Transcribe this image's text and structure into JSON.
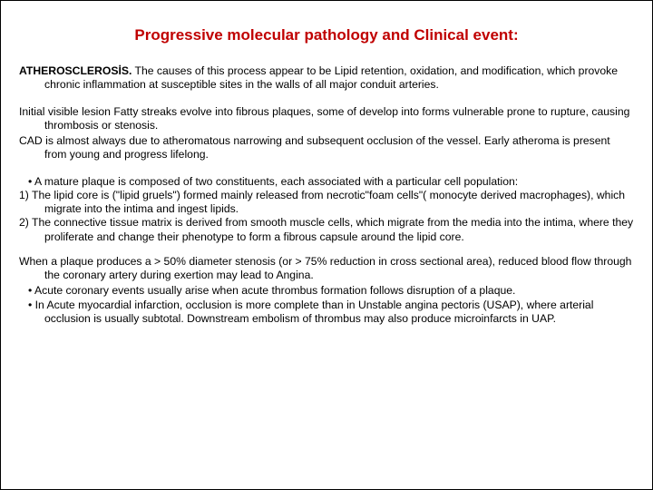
{
  "colors": {
    "title_color": "#c00000",
    "body_color": "#000000",
    "background": "#ffffff",
    "border": "#000000"
  },
  "title": "Progressive molecular pathology and Clinical event:",
  "p1_lead": "ATHEROSCLEROSİS.",
  "p1_rest": " The causes of this process appear to be Lipid retention, oxidation, and modification, which provoke chronic inflammation at susceptible sites in the walls of all major conduit arteries.",
  "p2a": "Initial visible lesion Fatty streaks evolve into fibrous plaques, some of  develop into forms vulnerable  prone to rupture, causing thrombosis or stenosis.",
  "p2b": "CAD is almost always due to atheromatous narrowing and subsequent occlusion of the vessel. Early atheroma  is present from young and progress lifelong.",
  "p3_bullet": "•    A mature plaque is composed of two constituents, each associated with a particular cell population:",
  "p3_n1": "1) The lipid core is (\"lipid gruels\") formed mainly released from necrotic\"foam cells\"( monocyte derived macrophages), which migrate into the intima and ingest lipids.",
  "p3_n2": "2) The connective tissue matrix is derived from smooth muscle cells, which migrate from the media into the intima, where they proliferate and change their phenotype to form a fibrous capsule around the lipid core.",
  "p4a": "When a plaque produces a > 50% diameter stenosis (or > 75% reduction in cross sectional area), reduced blood flow through the coronary artery during exertion may lead to Angina.",
  "p4b": "•    Acute coronary events usually arise when acute thrombus formation follows disruption of a plaque.",
  "p4c": "•    In Acute myocardial infarction, occlusion is more complete than in Unstable angina pectoris (USAP), where arterial occlusion is usually subtotal. Downstream embolism of thrombus may also produce microinfarcts in UAP."
}
